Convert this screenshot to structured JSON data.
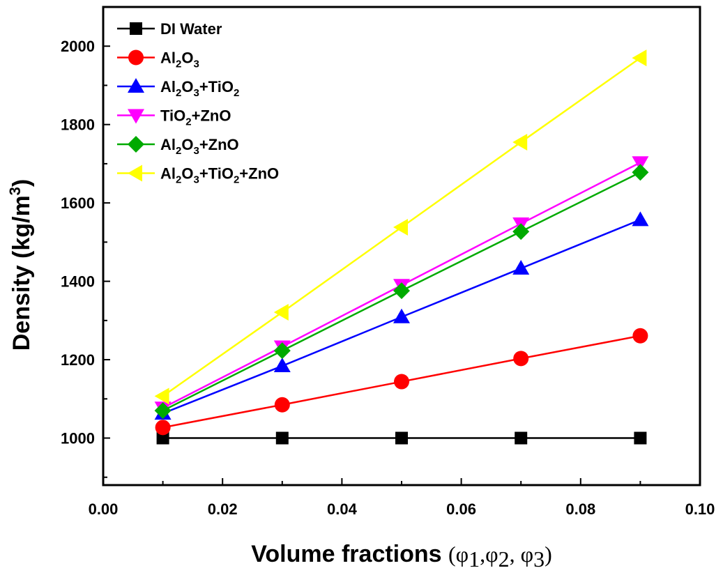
{
  "chart_data": {
    "type": "line",
    "xlabel": "Volume fractions (φ1,φ2, φ3)",
    "xlabel_main": "Volume fractions",
    "xlabel_sym": "(φ",
    "xlabel_sub1": "1",
    "xlabel_mid1": ",φ",
    "xlabel_sub2": "2",
    "xlabel_mid2": ", φ",
    "xlabel_sub3": "3",
    "xlabel_end": ")",
    "ylabel": "Density (kg/m3)",
    "ylabel_main": "Density (kg/m",
    "ylabel_sup": "3",
    "ylabel_end": ")",
    "xlim": [
      0.0,
      0.1
    ],
    "ylim": [
      880,
      2100
    ],
    "xticks": [
      0.0,
      0.02,
      0.04,
      0.06,
      0.08,
      0.1
    ],
    "xtick_labels": [
      "0.00",
      "0.02",
      "0.04",
      "0.06",
      "0.08",
      "0.10"
    ],
    "yticks": [
      1000,
      1200,
      1400,
      1600,
      1800,
      2000
    ],
    "ytick_labels": [
      "1000",
      "1200",
      "1400",
      "1600",
      "1800",
      "2000"
    ],
    "legend_position": "top-left",
    "x": [
      0.01,
      0.03,
      0.05,
      0.07,
      0.09
    ],
    "series": [
      {
        "name": "DI Water",
        "label_parts": [
          {
            "t": "DI Water"
          }
        ],
        "color": "#000000",
        "marker": "square",
        "values": [
          1000,
          1000,
          1000,
          1000,
          1000
        ]
      },
      {
        "name": "Al2O3",
        "label_parts": [
          {
            "t": "Al"
          },
          {
            "t": "2",
            "sub": true
          },
          {
            "t": "O"
          },
          {
            "t": "3",
            "sub": true
          }
        ],
        "color": "#ff0000",
        "marker": "circle",
        "values": [
          1027,
          1085,
          1144,
          1203,
          1261
        ]
      },
      {
        "name": "Al2O3+TiO2",
        "label_parts": [
          {
            "t": "Al"
          },
          {
            "t": "2",
            "sub": true
          },
          {
            "t": "O"
          },
          {
            "t": "3",
            "sub": true
          },
          {
            "t": "+TiO"
          },
          {
            "t": "2",
            "sub": true
          }
        ],
        "color": "#0000ff",
        "marker": "triangle-up",
        "values": [
          1063,
          1184,
          1309,
          1433,
          1557
        ]
      },
      {
        "name": "TiO2+ZnO",
        "label_parts": [
          {
            "t": "TiO"
          },
          {
            "t": "2",
            "sub": true
          },
          {
            "t": "+ZnO"
          }
        ],
        "color": "#ff00ff",
        "marker": "triangle-down",
        "values": [
          1077,
          1233,
          1390,
          1547,
          1703
        ]
      },
      {
        "name": "Al2O3+ZnO",
        "label_parts": [
          {
            "t": "Al"
          },
          {
            "t": "2",
            "sub": true
          },
          {
            "t": "O"
          },
          {
            "t": "3",
            "sub": true
          },
          {
            "t": "+ZnO"
          }
        ],
        "color": "#00aa00",
        "marker": "diamond",
        "values": [
          1070,
          1223,
          1376,
          1527,
          1678
        ]
      },
      {
        "name": "Al2O3+TiO2+ZnO",
        "label_parts": [
          {
            "t": "Al"
          },
          {
            "t": "2",
            "sub": true
          },
          {
            "t": "O"
          },
          {
            "t": "3",
            "sub": true
          },
          {
            "t": "+TiO"
          },
          {
            "t": "2",
            "sub": true
          },
          {
            "t": "+ZnO"
          }
        ],
        "color": "#ffff00",
        "marker": "triangle-left",
        "values": [
          1107,
          1321,
          1538,
          1755,
          1970
        ]
      }
    ]
  }
}
